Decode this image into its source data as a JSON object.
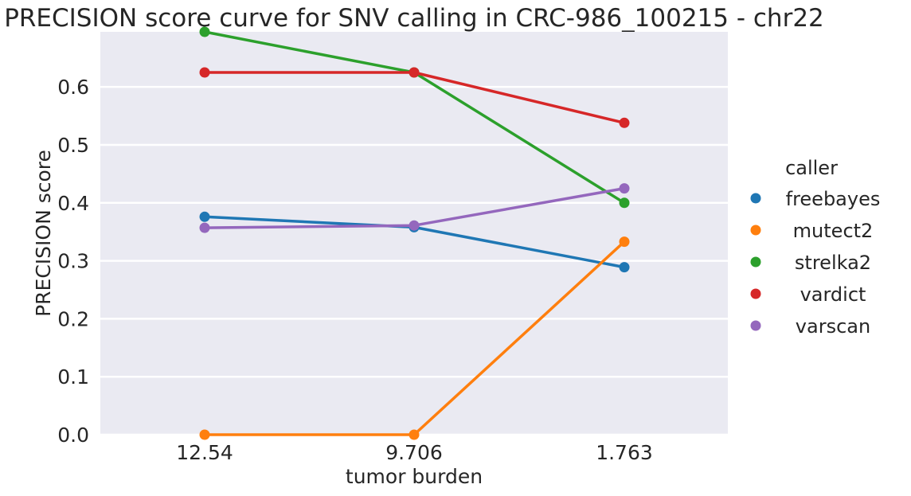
{
  "chart_data": {
    "type": "line",
    "title": "PRECISION score curve for SNV calling in CRC-986_100215 - chr22",
    "xlabel": "tumor burden",
    "ylabel": "PRECISION score",
    "categories": [
      "12.54",
      "9.706",
      "1.763"
    ],
    "ylim": [
      0,
      0.695
    ],
    "yticks": [
      0.0,
      0.1,
      0.2,
      0.3,
      0.4,
      0.5,
      0.6
    ],
    "ytick_labels": [
      "0.0",
      "0.1",
      "0.2",
      "0.3",
      "0.4",
      "0.5",
      "0.6"
    ],
    "grid": true,
    "legend": {
      "title": "caller",
      "placement": "right"
    },
    "series": [
      {
        "name": "freebayes",
        "color": "#1f77b4",
        "values": [
          0.376,
          0.358,
          0.289
        ]
      },
      {
        "name": "mutect2",
        "color": "#ff7f0e",
        "values": [
          0.0,
          0.0,
          0.333
        ]
      },
      {
        "name": "strelka2",
        "color": "#2ca02c",
        "values": [
          0.695,
          0.625,
          0.4
        ]
      },
      {
        "name": "vardict",
        "color": "#d62728",
        "values": [
          0.625,
          0.625,
          0.538
        ]
      },
      {
        "name": "varscan",
        "color": "#9467bd",
        "values": [
          0.357,
          0.361,
          0.425
        ]
      }
    ]
  }
}
